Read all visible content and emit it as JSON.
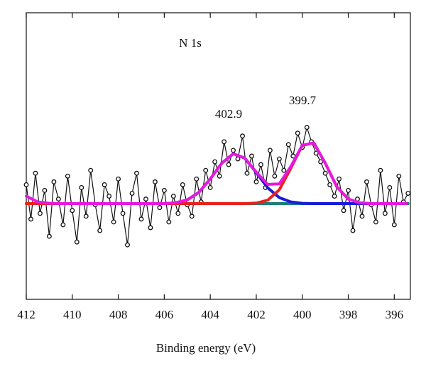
{
  "chart_data": {
    "type": "line",
    "annotations": [
      "N 1s",
      "402.9",
      "399.7"
    ],
    "xlabel": "Binding energy (eV)",
    "xlim": [
      412,
      395.3
    ],
    "xticks": [
      412,
      410,
      408,
      406,
      404,
      402,
      400,
      398,
      396
    ],
    "ylim": [
      0,
      100
    ],
    "series": [
      {
        "color": "#111111",
        "marker": true,
        "x": [
          412.0,
          411.8,
          411.6,
          411.4,
          411.2,
          411.0,
          410.8,
          410.6,
          410.4,
          410.2,
          410.0,
          409.8,
          409.6,
          409.4,
          409.2,
          409.0,
          408.8,
          408.6,
          408.4,
          408.2,
          408.0,
          407.8,
          407.6,
          407.4,
          407.2,
          407.0,
          406.8,
          406.6,
          406.4,
          406.2,
          406.0,
          405.8,
          405.6,
          405.4,
          405.2,
          405.0,
          404.8,
          404.6,
          404.4,
          404.2,
          404.0,
          403.8,
          403.6,
          403.4,
          403.2,
          403.0,
          402.8,
          402.6,
          402.4,
          402.2,
          402.0,
          401.8,
          401.6,
          401.4,
          401.2,
          401.0,
          400.8,
          400.6,
          400.4,
          400.2,
          400.0,
          399.8,
          399.6,
          399.4,
          399.2,
          399.0,
          398.8,
          398.6,
          398.4,
          398.2,
          398.0,
          397.8,
          397.6,
          397.4,
          397.2,
          397.0,
          396.8,
          396.6,
          396.4,
          396.2,
          396.0,
          395.8,
          395.6,
          395.4
        ],
        "values": [
          40,
          28,
          44,
          30,
          38,
          22,
          41,
          35,
          26,
          43,
          31,
          20,
          39,
          29,
          45,
          33,
          24,
          40,
          36,
          27,
          42,
          30,
          19,
          37,
          44,
          28,
          35,
          25,
          41,
          32,
          38,
          27,
          36,
          30,
          40,
          33,
          29,
          42,
          34,
          45,
          39,
          48,
          43,
          55,
          47,
          52,
          49,
          57,
          44,
          50,
          41,
          47,
          39,
          52,
          43,
          49,
          45,
          54,
          50,
          58,
          53,
          60,
          55,
          51,
          48,
          44,
          40,
          36,
          42,
          31,
          38,
          24,
          35,
          29,
          41,
          33,
          27,
          45,
          30,
          39,
          26,
          43,
          34,
          37
        ]
      },
      {
        "color": "#1b7f7a",
        "x": [
          412,
          395.4
        ],
        "values": [
          33.4,
          33.4
        ]
      },
      {
        "color": "#1a1adb",
        "x": [
          412,
          411.5,
          411,
          410.5,
          410,
          409.5,
          409,
          408.5,
          408,
          407.5,
          407,
          406.5,
          406,
          405.5,
          405,
          404.5,
          404,
          403.5,
          403,
          402.5,
          402,
          401.5,
          401,
          400.5,
          400,
          399.5,
          399,
          398.5,
          398,
          397.5,
          397,
          396.5,
          396,
          395.5
        ],
        "values": [
          33.4,
          33.4,
          33.4,
          33.4,
          33.4,
          33.4,
          33.4,
          33.4,
          33.4,
          33.4,
          33.4,
          33.4,
          33.4,
          33.7,
          34.7,
          37.3,
          42.0,
          47.5,
          50.8,
          49.3,
          44.2,
          38.9,
          35.5,
          34.0,
          33.5,
          33.4,
          33.4,
          33.4,
          33.4,
          33.4,
          33.4,
          33.4,
          33.4,
          33.4
        ]
      },
      {
        "color": "#e8231e",
        "x": [
          412,
          411.5,
          411,
          410.5,
          410,
          409.5,
          409,
          408.5,
          408,
          407.5,
          407,
          406.5,
          406,
          405.5,
          405,
          404.5,
          404,
          403.5,
          403,
          402.5,
          402,
          401.5,
          401,
          400.5,
          400,
          399.5,
          399,
          398.5,
          398,
          397.5,
          397,
          396.5,
          396,
          395.5
        ],
        "values": [
          33.4,
          33.4,
          33.4,
          33.4,
          33.4,
          33.4,
          33.4,
          33.4,
          33.4,
          33.4,
          33.4,
          33.4,
          33.4,
          33.4,
          33.4,
          33.4,
          33.4,
          33.4,
          33.4,
          33.4,
          33.6,
          34.6,
          38.2,
          45.7,
          53.7,
          54.6,
          47.5,
          39.3,
          35.0,
          33.7,
          33.4,
          33.4,
          33.4,
          33.4
        ]
      },
      {
        "color": "#e619e0",
        "x": [
          412,
          411.5,
          411,
          410.5,
          410,
          409.5,
          409,
          408.5,
          408,
          407.5,
          407,
          406.5,
          406,
          405.5,
          405,
          404.5,
          404,
          403.5,
          403,
          402.5,
          402,
          401.5,
          401,
          400.5,
          400,
          399.5,
          399,
          398.5,
          398,
          397.5,
          397,
          396.5,
          396,
          395.5
        ],
        "values": [
          36.0,
          34.0,
          33.5,
          33.4,
          33.4,
          33.4,
          33.4,
          33.4,
          33.4,
          33.4,
          33.4,
          33.4,
          33.4,
          33.7,
          34.7,
          37.3,
          42.0,
          47.5,
          50.8,
          49.3,
          44.4,
          40.1,
          40.3,
          46.3,
          53.8,
          54.6,
          47.5,
          39.3,
          35.0,
          33.7,
          33.4,
          33.4,
          33.4,
          33.4
        ]
      }
    ]
  }
}
